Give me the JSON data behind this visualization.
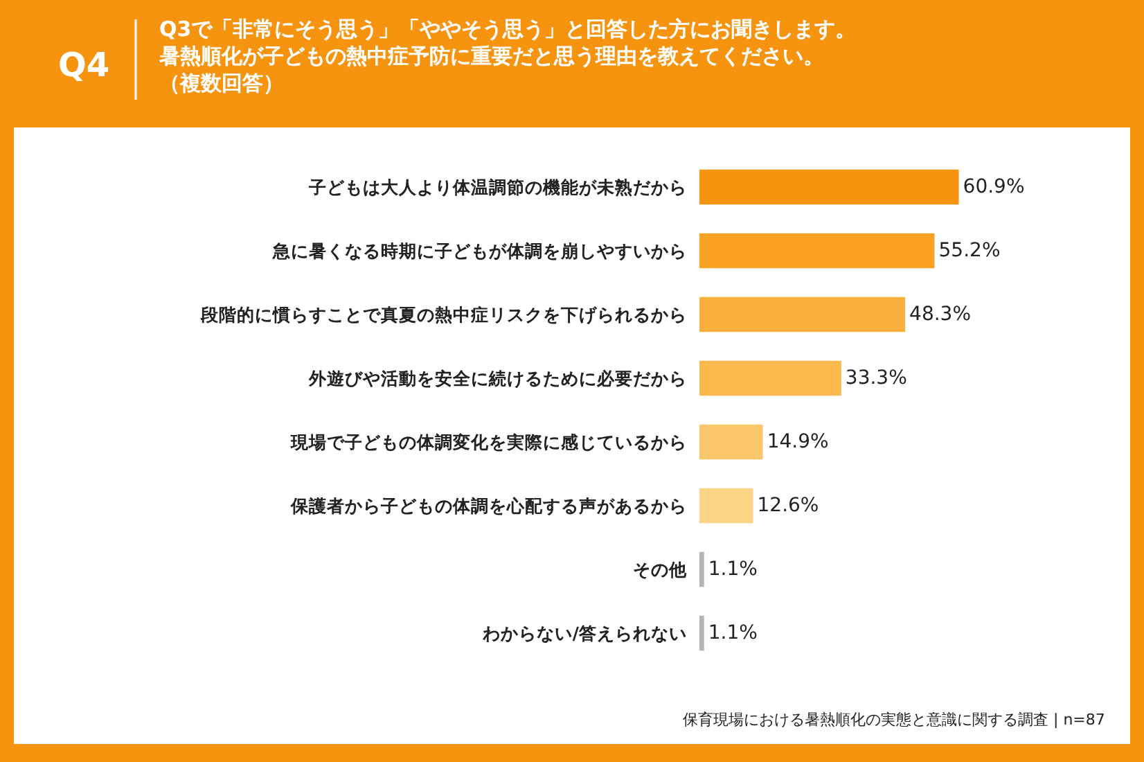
{
  "chart_data": {
    "type": "bar",
    "orientation": "horizontal",
    "title": "Q4",
    "subtitle": "Q3で「非常にそう思う」「ややそう思う」と回答した方にお聞きします。暑熱順化が子どもの熱中症予防に重要だと思う理由を教えてください。（複数回答）",
    "categories": [
      "子どもは大人より体温調節の機能が未熟だから",
      "急に暑くなる時期に子どもが体調を崩しやすいから",
      "段階的に慣らすことで真夏の熱中症リスクを下げられるから",
      "外遊びや活動を安全に続けるために必要だから",
      "現場で子どもの体調変化を実際に感じているから",
      "保護者から子どもの体調を心配する声があるから",
      "その他",
      "わからない/答えられない"
    ],
    "values": [
      60.9,
      55.2,
      48.3,
      33.3,
      14.9,
      12.6,
      1.1,
      1.1
    ],
    "value_labels": [
      "60.9%",
      "55.2%",
      "48.3%",
      "33.3%",
      "14.9%",
      "12.6%",
      "1.1%",
      "1.1%"
    ],
    "colors": [
      "#f7940f",
      "#f9a223",
      "#fbb03e",
      "#fbb94e",
      "#fdc86c",
      "#fdd486",
      "#b4b4b4",
      "#b4b4b4"
    ],
    "annotations": [
      "保育現場における暑熱順化の実態と意識に関する調査 | n=87"
    ]
  }
}
